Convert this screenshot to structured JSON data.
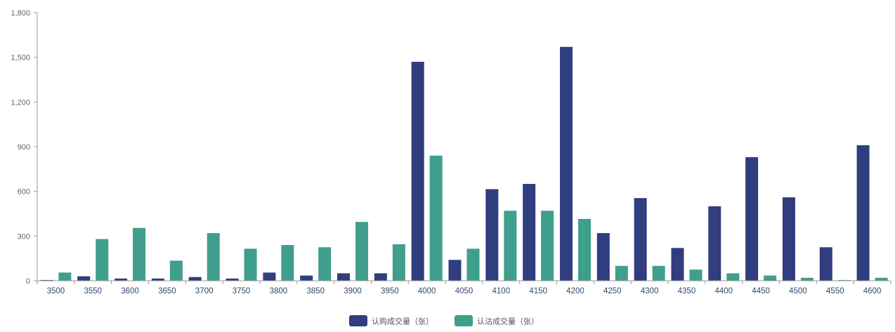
{
  "chart_data": {
    "type": "bar",
    "categories": [
      "3500",
      "3550",
      "3600",
      "3650",
      "3700",
      "3750",
      "3800",
      "3850",
      "3900",
      "3950",
      "4000",
      "4050",
      "4100",
      "4150",
      "4200",
      "4250",
      "4300",
      "4350",
      "4400",
      "4450",
      "4500",
      "4550",
      "4600"
    ],
    "series": [
      {
        "name": "认购成交量（张）",
        "color": "#303d7e",
        "values": [
          5,
          30,
          15,
          15,
          25,
          15,
          55,
          35,
          50,
          50,
          1470,
          140,
          615,
          650,
          1570,
          320,
          555,
          220,
          500,
          830,
          560,
          225,
          910
        ]
      },
      {
        "name": "认沽成交量（张）",
        "color": "#3f9e8d",
        "values": [
          55,
          280,
          355,
          135,
          320,
          215,
          240,
          225,
          395,
          245,
          840,
          215,
          470,
          470,
          415,
          100,
          100,
          75,
          50,
          35,
          20,
          5,
          20
        ]
      }
    ],
    "ylim": [
      0,
      1800
    ],
    "yticks": [
      "0",
      "300",
      "600",
      "900",
      "1,200",
      "1,500",
      "1,800"
    ],
    "ytick_values": [
      0,
      300,
      600,
      900,
      1200,
      1500,
      1800
    ],
    "grid": false,
    "legend_position": "bottom-center"
  }
}
